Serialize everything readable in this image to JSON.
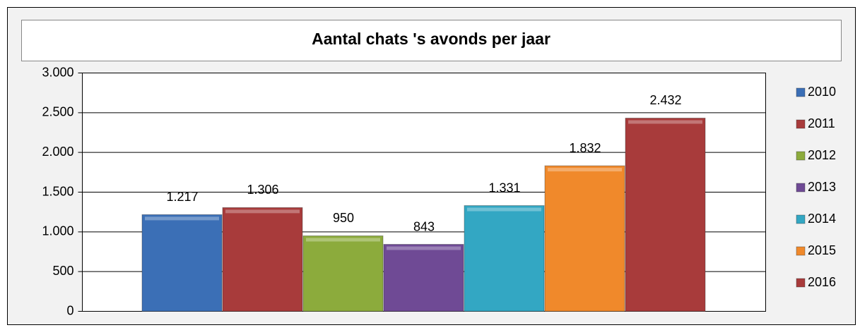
{
  "chart_data": {
    "type": "bar",
    "title": "Aantal chats 's avonds per jaar",
    "categories": [
      null
    ],
    "series": [
      {
        "name": "2010",
        "color": "#3b6fb6",
        "values": [
          1217
        ],
        "value_labels": [
          "1.217"
        ]
      },
      {
        "name": "2011",
        "color": "#a83b3b",
        "values": [
          1306
        ],
        "value_labels": [
          "1.306"
        ]
      },
      {
        "name": "2012",
        "color": "#8cab3c",
        "values": [
          950
        ]
      },
      {
        "name": "2013",
        "color": "#6f4a95",
        "values": [
          843
        ]
      },
      {
        "name": "2014",
        "color": "#33a7c3",
        "values": [
          1331
        ],
        "value_labels": [
          "1.331"
        ]
      },
      {
        "name": "2015",
        "color": "#f0892b",
        "values": [
          1832
        ],
        "value_labels": [
          "1.832"
        ]
      },
      {
        "name": "2016",
        "color": "#a83b3b",
        "values": [
          2432
        ],
        "value_labels": [
          "2.432"
        ]
      }
    ],
    "ylim": [
      0,
      3000
    ],
    "yticks": [
      0,
      500,
      {
        "value": 1000,
        "label": "1.000"
      },
      {
        "value": 1500,
        "label": "1.500"
      },
      {
        "value": 2000,
        "label": "2.000"
      },
      {
        "value": 2500,
        "label": "2.500"
      },
      {
        "value": 3000,
        "label": "3.000"
      }
    ],
    "grid": true,
    "legend": "right"
  }
}
